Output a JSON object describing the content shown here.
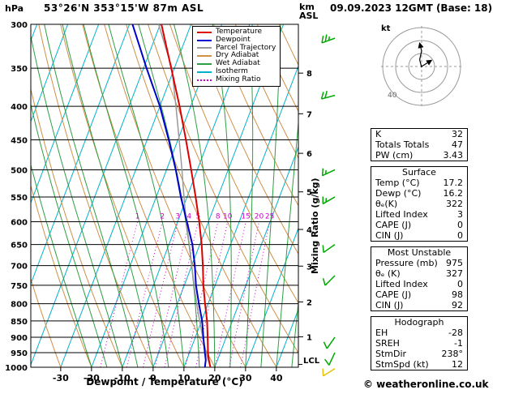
{
  "header": {
    "pressure_unit": "hPa",
    "station": "53°26'N 353°15'W 87m ASL",
    "datetime": "09.09.2023 12GMT (Base: 18)",
    "alt_unit_line1": "km",
    "alt_unit_line2": "ASL"
  },
  "axes": {
    "xlabel": "Dewpoint / Temperature (°C)",
    "x_ticks": [
      -30,
      -20,
      -10,
      0,
      10,
      20,
      30,
      40
    ],
    "pressure_ticks": [
      300,
      350,
      400,
      450,
      500,
      550,
      600,
      650,
      700,
      750,
      800,
      850,
      900,
      950,
      1000
    ],
    "km_ticks": [
      1,
      2,
      3,
      4,
      5,
      6,
      7,
      8
    ],
    "mixing_ratio_axis_label": "Mixing Ratio (g/kg)",
    "lcl_label": "LCL"
  },
  "legend": {
    "items": [
      {
        "label": "Temperature",
        "color": "#dd0000",
        "dash": ""
      },
      {
        "label": "Dewpoint",
        "color": "#0000cc",
        "dash": ""
      },
      {
        "label": "Parcel Trajectory",
        "color": "#999999",
        "dash": ""
      },
      {
        "label": "Dry Adiabat",
        "color": "#d09048",
        "dash": ""
      },
      {
        "label": "Wet Adiabat",
        "color": "#2f9e44",
        "dash": ""
      },
      {
        "label": "Isotherm",
        "color": "#00b2cc",
        "dash": ""
      },
      {
        "label": "Mixing Ratio",
        "color": "#cc00cc",
        "dash": "dotted"
      }
    ]
  },
  "chart_data": {
    "type": "line",
    "title": "Skew-T log-P sounding 53°26'N 353°15'W 87m ASL 09.09.2023 12GMT",
    "x_axis": {
      "label": "Dewpoint / Temperature (°C)",
      "range": [
        -40,
        47
      ]
    },
    "y_axis": {
      "label": "hPa",
      "range": [
        1000,
        300
      ],
      "scale": "log"
    },
    "pressure_hPa": [
      1000,
      975,
      950,
      925,
      900,
      850,
      800,
      750,
      700,
      650,
      600,
      550,
      500,
      450,
      400,
      350,
      300
    ],
    "series": [
      {
        "name": "Temperature",
        "color": "#dd0000",
        "values_C": [
          18.6,
          17.2,
          16.0,
          15.0,
          14.0,
          11.8,
          9.0,
          6.2,
          3.6,
          0.6,
          -3.0,
          -7.2,
          -12.0,
          -17.4,
          -23.6,
          -31.0,
          -39.6
        ]
      },
      {
        "name": "Dewpoint",
        "color": "#0000cc",
        "values_C": [
          16.8,
          16.2,
          15.0,
          13.8,
          12.6,
          10.2,
          7.0,
          3.8,
          1.0,
          -2.4,
          -7.0,
          -12.0,
          -17.0,
          -23.0,
          -30.0,
          -39.0,
          -49.0
        ]
      },
      {
        "name": "Parcel Trajectory",
        "color": "#999999",
        "values_C": [
          18.6,
          17.0,
          15.4,
          13.9,
          12.4,
          9.4,
          6.3,
          3.2,
          0.0,
          -3.4,
          -7.2,
          -11.0,
          -15.0,
          -19.6,
          -24.8,
          -30.8,
          -40.5
        ]
      }
    ],
    "mixing_ratio_lines_g_kg": [
      1,
      2,
      3,
      4,
      5,
      8,
      10,
      15,
      20,
      25
    ],
    "wind_barbs": [
      {
        "p": 315,
        "speed_kt": 25,
        "dir_deg": 250,
        "color": "#00a800"
      },
      {
        "p": 385,
        "speed_kt": 20,
        "dir_deg": 255,
        "color": "#00a800"
      },
      {
        "p": 500,
        "speed_kt": 15,
        "dir_deg": 245,
        "color": "#00a800"
      },
      {
        "p": 550,
        "speed_kt": 15,
        "dir_deg": 240,
        "color": "#00a800"
      },
      {
        "p": 650,
        "speed_kt": 10,
        "dir_deg": 235,
        "color": "#00a800"
      },
      {
        "p": 725,
        "speed_kt": 10,
        "dir_deg": 225,
        "color": "#00a800"
      },
      {
        "p": 900,
        "speed_kt": 10,
        "dir_deg": 215,
        "color": "#00a800"
      },
      {
        "p": 950,
        "speed_kt": 10,
        "dir_deg": 205,
        "color": "#00a800"
      },
      {
        "p": 1005,
        "speed_kt": 12,
        "dir_deg": 238,
        "color": "#e8c000"
      }
    ],
    "lcl_pressure_hPa": 990
  },
  "hodograph": {
    "unit_label": "kt",
    "ring_label": "40",
    "rings_kt": [
      13.3,
      26.7,
      40
    ],
    "trace_uv_kt": [
      [
        0,
        -1
      ],
      [
        -2,
        7
      ],
      [
        0,
        16
      ],
      [
        -2,
        24
      ]
    ],
    "storm_motion": {
      "dir_deg": 238,
      "speed_kt": 12
    }
  },
  "table": {
    "sections": [
      {
        "header": null,
        "rows": [
          {
            "label": "K",
            "value": "32"
          },
          {
            "label": "Totals Totals",
            "value": "47"
          },
          {
            "label": "PW (cm)",
            "value": "3.43"
          }
        ]
      },
      {
        "header": "Surface",
        "rows": [
          {
            "label": "Temp (°C)",
            "value": "17.2"
          },
          {
            "label": "Dewp (°C)",
            "value": "16.2"
          },
          {
            "label": "θₑ(K)",
            "value": "322"
          },
          {
            "label": "Lifted Index",
            "value": "3"
          },
          {
            "label": "CAPE (J)",
            "value": "0"
          },
          {
            "label": "CIN (J)",
            "value": "0"
          }
        ]
      },
      {
        "header": "Most Unstable",
        "rows": [
          {
            "label": "Pressure (mb)",
            "value": "975"
          },
          {
            "label": "θₑ (K)",
            "value": "327"
          },
          {
            "label": "Lifted Index",
            "value": "0"
          },
          {
            "label": "CAPE (J)",
            "value": "98"
          },
          {
            "label": "CIN (J)",
            "value": "92"
          }
        ]
      },
      {
        "header": "Hodograph",
        "rows": [
          {
            "label": "EH",
            "value": "-28"
          },
          {
            "label": "SREH",
            "value": "-1"
          },
          {
            "label": "StmDir",
            "value": "238°"
          },
          {
            "label": "StmSpd (kt)",
            "value": "12"
          }
        ]
      }
    ]
  },
  "footer": {
    "copyright": "© weatheronline.co.uk"
  }
}
